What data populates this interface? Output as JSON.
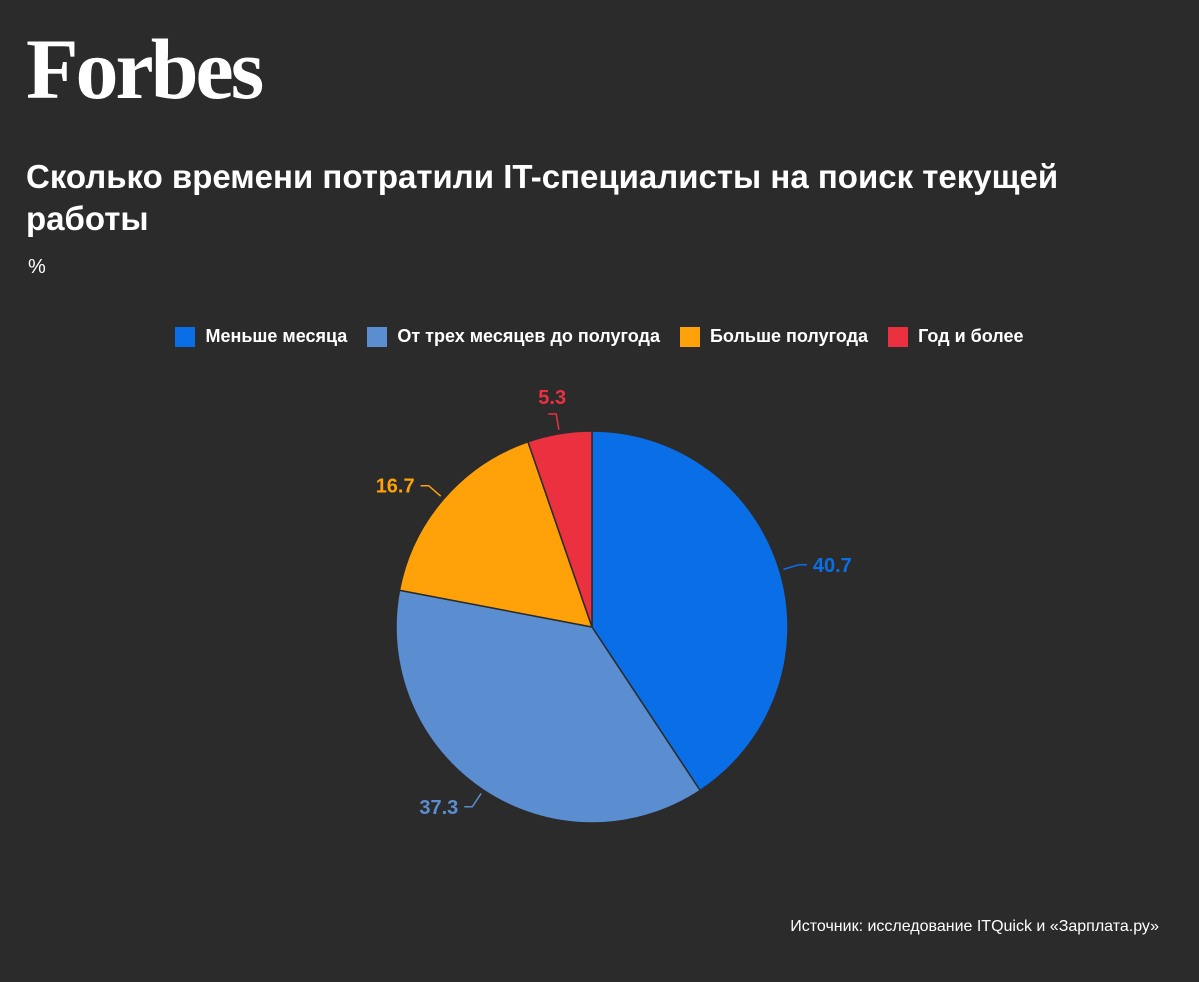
{
  "brand": {
    "logo_text": "Forbes"
  },
  "header": {
    "title": "Сколько времени потратили IT-специалисты на поиск текущей работы",
    "subtitle": "%"
  },
  "legend": {
    "items": [
      {
        "label": "Меньше месяца",
        "color": "#0a6fe6"
      },
      {
        "label": "От трех месяцев до полугода",
        "color": "#5b8ed0"
      },
      {
        "label": "Больше полугода",
        "color": "#ffa20a"
      },
      {
        "label": "Год и более",
        "color": "#eb3040"
      }
    ]
  },
  "chart_data": {
    "type": "pie",
    "title": "Сколько времени потратили IT-специалисты на поиск текущей работы",
    "unit": "%",
    "legend_position": "top-center",
    "slices": [
      {
        "label": "Меньше месяца",
        "value": 40.7,
        "display": "40.7",
        "color": "#0a6fe6"
      },
      {
        "label": "От трех месяцев до полугода",
        "value": 37.3,
        "display": "37.3",
        "color": "#5b8ed0"
      },
      {
        "label": "Больше полугода",
        "value": 16.7,
        "display": "16.7",
        "color": "#ffa20a"
      },
      {
        "label": "Год и более",
        "value": 5.3,
        "display": "5.3",
        "color": "#eb3040"
      }
    ]
  },
  "footer": {
    "source": "Источник: исследование ITQuick и «Зарплата.ру»"
  }
}
